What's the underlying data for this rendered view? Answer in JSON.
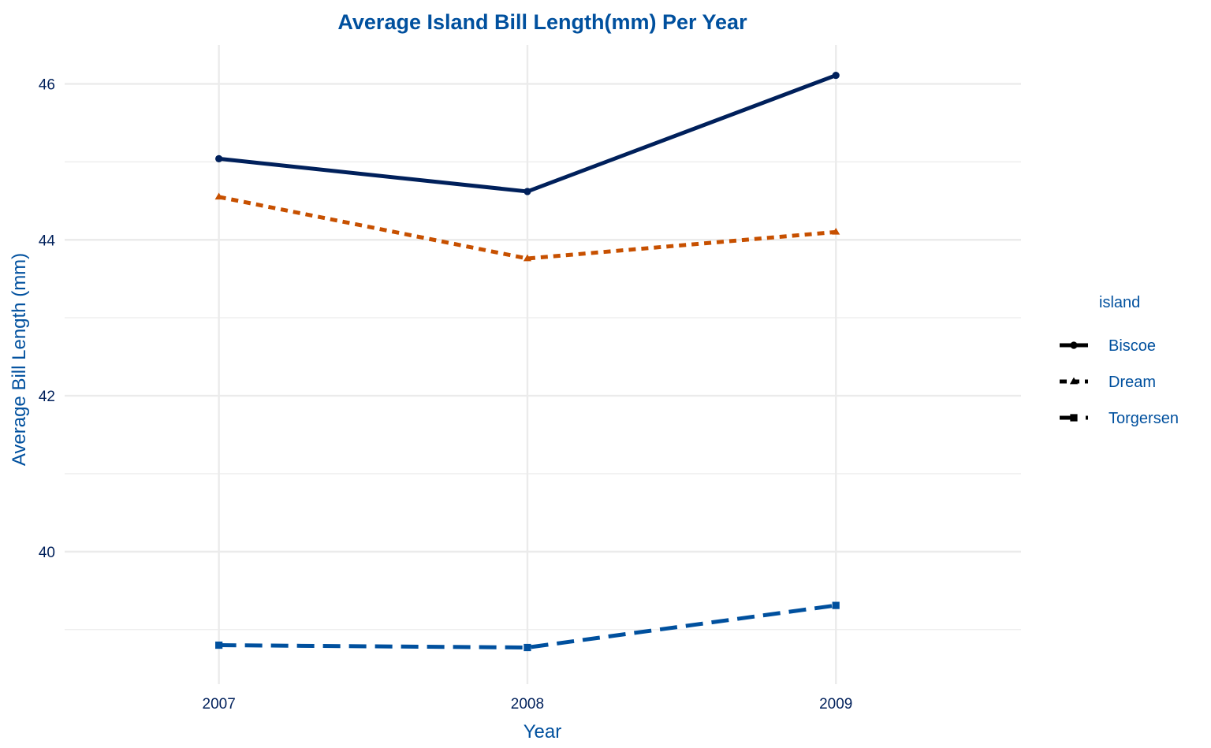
{
  "chart_data": {
    "type": "line",
    "title": "Average Island Bill Length(mm) Per Year",
    "xlabel": "Year",
    "ylabel": "Average Bill Length (mm)",
    "x": [
      2007,
      2008,
      2009
    ],
    "xlim": [
      2006.5,
      2009.6
    ],
    "ylim": [
      38.3,
      46.5
    ],
    "y_ticks": [
      40,
      42,
      44,
      46
    ],
    "y_minor_ticks": [
      39,
      41,
      43,
      45
    ],
    "x_tick_labels": [
      "2007",
      "2008",
      "2009"
    ],
    "y_tick_labels": [
      "40",
      "42",
      "44",
      "46"
    ],
    "grid": true,
    "legend": {
      "title": "island",
      "placement": "right"
    },
    "series": [
      {
        "name": "Biscoe",
        "values": [
          45.04,
          44.62,
          46.11
        ],
        "color": "#00205B",
        "line": "solid",
        "marker": "circle"
      },
      {
        "name": "Dream",
        "values": [
          44.55,
          43.76,
          44.1
        ],
        "color": "#C75000",
        "line": "dotted",
        "marker": "triangle"
      },
      {
        "name": "Torgersen",
        "values": [
          38.8,
          38.77,
          39.31
        ],
        "color": "#00509E",
        "line": "dashed",
        "marker": "square"
      }
    ]
  },
  "colors": {
    "title": "#00509E",
    "axis_title": "#00509E",
    "tick_label": "#00205B",
    "legend_text": "#00509E",
    "grid": "#EBEBEB"
  }
}
